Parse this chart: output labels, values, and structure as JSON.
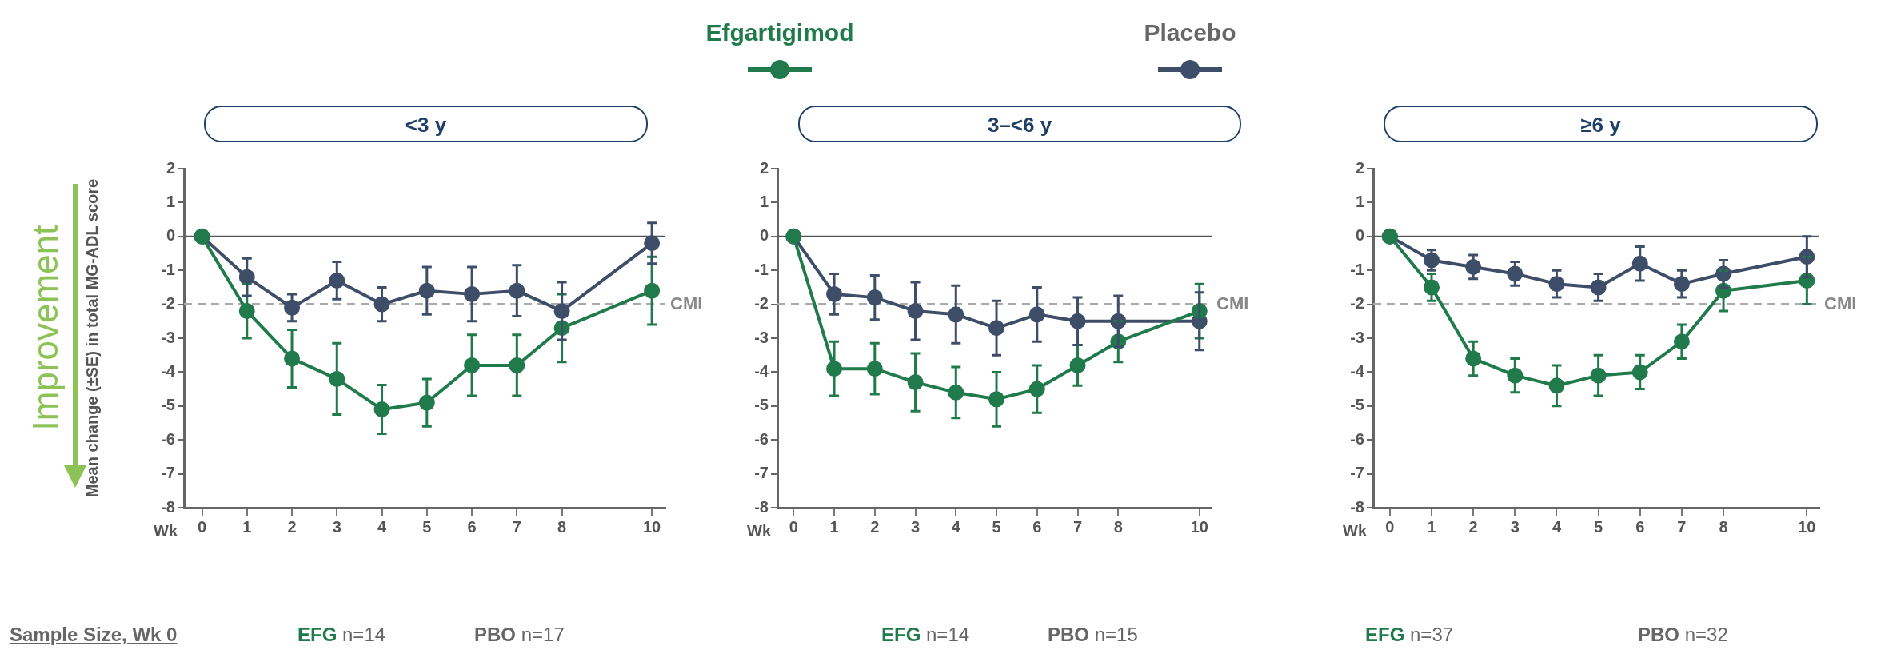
{
  "chart_data": [
    {
      "type": "line",
      "title": "<3 y",
      "xlabel": "Wk",
      "ylabel": "Mean change (±SE) in total MG-ADL score",
      "x": [
        0,
        1,
        2,
        3,
        4,
        5,
        6,
        7,
        8,
        10
      ],
      "xlim": [
        -0.4,
        10.3
      ],
      "xticks": [
        0,
        1,
        2,
        3,
        4,
        5,
        6,
        7,
        8,
        10
      ],
      "ylim": [
        -8,
        2
      ],
      "yticks": [
        2,
        1,
        0,
        -1,
        -2,
        -3,
        -4,
        -5,
        -6,
        -7,
        -8
      ],
      "marker": "circle",
      "legend": "top",
      "series": [
        {
          "name": "Efgartigimod",
          "color": "#217a4b",
          "values": [
            0,
            -2.2,
            -3.6,
            -4.2,
            -5.1,
            -4.9,
            -3.8,
            -3.8,
            -2.7,
            -1.6
          ],
          "errors": [
            null,
            0.8,
            0.85,
            1.05,
            0.72,
            0.7,
            0.9,
            0.9,
            1.0,
            1.0
          ]
        },
        {
          "name": "Placebo",
          "color": "#3e4d68",
          "values": [
            0,
            -1.2,
            -2.1,
            -1.3,
            -2.0,
            -1.6,
            -1.7,
            -1.6,
            -2.2,
            -0.2
          ],
          "errors": [
            null,
            0.55,
            0.4,
            0.55,
            0.5,
            0.7,
            0.8,
            0.75,
            0.85,
            0.6
          ]
        }
      ],
      "ref_lines": [
        {
          "axis": "y",
          "value": 0,
          "color": "#555555",
          "line_style": "solid"
        },
        {
          "axis": "y",
          "value": -2,
          "label": "CMI",
          "color": "#aaaaaa",
          "line_style": "dashed"
        }
      ],
      "annotations": [
        "Improvement",
        "Sample Size, Wk 0",
        "EFG n=14",
        "PBO n=17"
      ]
    },
    {
      "type": "line",
      "title": "3–<6 y",
      "xlabel": "Wk",
      "x": [
        0,
        1,
        2,
        3,
        4,
        5,
        6,
        7,
        8,
        10
      ],
      "xlim": [
        -0.4,
        10.3
      ],
      "xticks": [
        0,
        1,
        2,
        3,
        4,
        5,
        6,
        7,
        8,
        10
      ],
      "ylim": [
        -8,
        2
      ],
      "yticks": [
        2,
        1,
        0,
        -1,
        -2,
        -3,
        -4,
        -5,
        -6,
        -7,
        -8
      ],
      "marker": "circle",
      "series": [
        {
          "color": "#217a4b",
          "values": [
            0,
            -3.9,
            -3.9,
            -4.3,
            -4.6,
            -4.8,
            -4.5,
            -3.8,
            -3.1,
            -2.2
          ],
          "errors": [
            null,
            0.8,
            0.75,
            0.85,
            0.75,
            0.8,
            0.7,
            0.6,
            0.6,
            0.8
          ]
        },
        {
          "color": "#3e4d68",
          "values": [
            0,
            -1.7,
            -1.8,
            -2.2,
            -2.3,
            -2.7,
            -2.3,
            -2.5,
            -2.5,
            -2.5
          ],
          "errors": [
            null,
            0.6,
            0.65,
            0.85,
            0.85,
            0.8,
            0.8,
            0.7,
            0.75,
            0.85
          ]
        }
      ],
      "ref_lines": [
        {
          "axis": "y",
          "value": 0,
          "color": "#555555",
          "line_style": "solid"
        },
        {
          "axis": "y",
          "value": -2,
          "label": "CMI",
          "color": "#aaaaaa",
          "line_style": "dashed"
        }
      ],
      "annotations": [
        "EFG n=14",
        "PBO n=15"
      ]
    },
    {
      "type": "line",
      "title": "≥6 y",
      "xlabel": "Wk",
      "x": [
        0,
        1,
        2,
        3,
        4,
        5,
        6,
        7,
        8,
        10
      ],
      "xlim": [
        -0.4,
        10.3
      ],
      "xticks": [
        0,
        1,
        2,
        3,
        4,
        5,
        6,
        7,
        8,
        10
      ],
      "ylim": [
        -8,
        2
      ],
      "yticks": [
        2,
        1,
        0,
        -1,
        -2,
        -3,
        -4,
        -5,
        -6,
        -7,
        -8
      ],
      "marker": "circle",
      "series": [
        {
          "color": "#217a4b",
          "values": [
            0,
            -1.5,
            -3.6,
            -4.1,
            -4.4,
            -4.1,
            -4.0,
            -3.1,
            -1.6,
            -1.3
          ],
          "errors": [
            null,
            0.4,
            0.5,
            0.5,
            0.6,
            0.6,
            0.5,
            0.5,
            0.6,
            0.7
          ]
        },
        {
          "color": "#3e4d68",
          "values": [
            0,
            -0.7,
            -0.9,
            -1.1,
            -1.4,
            -1.5,
            -0.8,
            -1.4,
            -1.1,
            -0.6
          ],
          "errors": [
            null,
            0.3,
            0.35,
            0.35,
            0.4,
            0.4,
            0.5,
            0.4,
            0.4,
            0.6
          ]
        }
      ],
      "ref_lines": [
        {
          "axis": "y",
          "value": 0,
          "color": "#555555",
          "line_style": "solid"
        },
        {
          "axis": "y",
          "value": -2,
          "label": "CMI",
          "color": "#aaaaaa",
          "line_style": "dashed"
        }
      ],
      "annotations": [
        "EFG n=37",
        "PBO n=32"
      ]
    }
  ]
}
